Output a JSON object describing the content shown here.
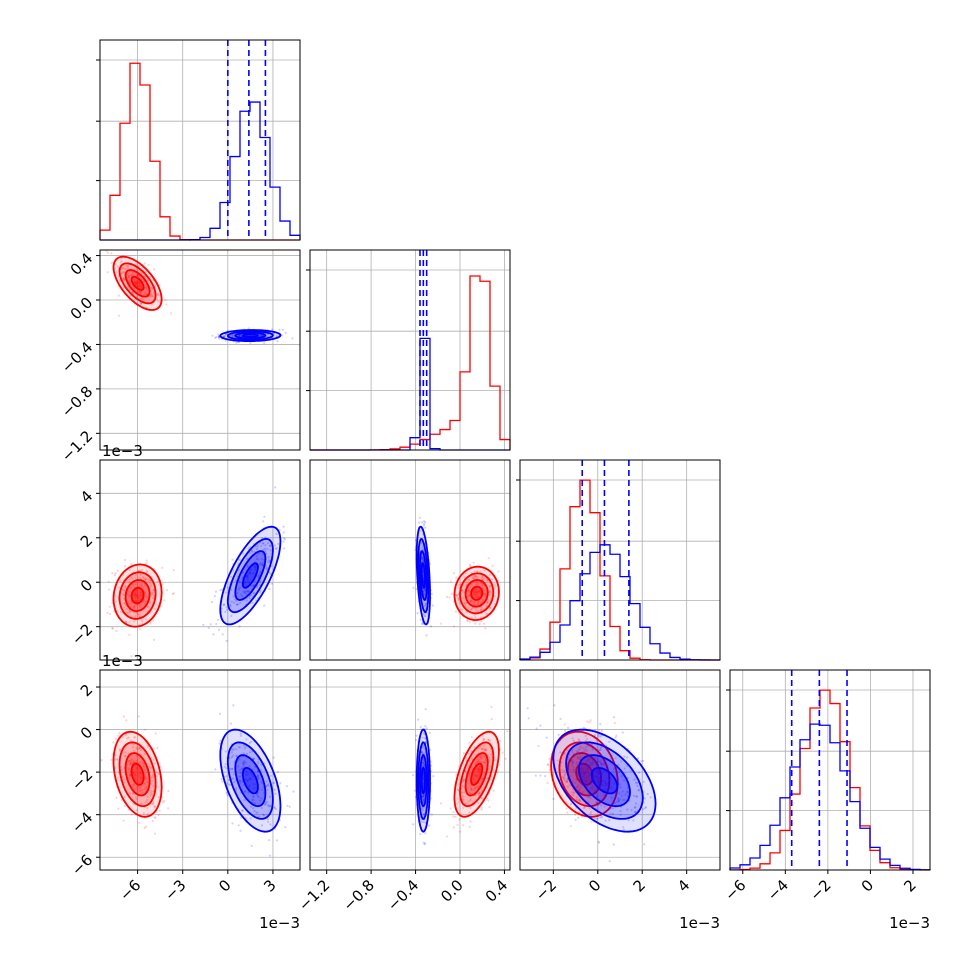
{
  "chart_data": {
    "type": "corner",
    "colors": {
      "series_a": "#ff0000",
      "series_b": "#0000ff"
    },
    "grid": true,
    "parameters": [
      {
        "index": 0,
        "range": [
          -8.5,
          4.8
        ],
        "ticks": [
          -6,
          -3,
          0,
          3
        ],
        "tick_labels": [
          "−6",
          "−3",
          "0",
          "3"
        ],
        "offset_label": "1e−3"
      },
      {
        "index": 1,
        "range": [
          -1.35,
          0.45
        ],
        "ticks": [
          -1.2,
          -0.8,
          -0.4,
          0.0,
          0.4
        ],
        "tick_labels": [
          "−1.2",
          "−0.8",
          "−0.4",
          "0.0",
          "0.4"
        ],
        "offset_label": ""
      },
      {
        "index": 2,
        "range": [
          -3.5,
          5.5
        ],
        "ticks": [
          -2,
          0,
          2,
          4
        ],
        "tick_labels": [
          "−2",
          "0",
          "2",
          "4"
        ],
        "offset_label": "1e−3"
      },
      {
        "index": 3,
        "range": [
          -6.6,
          2.8
        ],
        "ticks": [
          -6,
          -4,
          -2,
          0,
          2
        ],
        "tick_labels": [
          "−6",
          "−4",
          "−2",
          "0",
          "2"
        ],
        "offset_label": "1e−3"
      }
    ],
    "histograms": [
      {
        "param": 0,
        "quantiles_b": [
          0.0,
          1.4,
          2.5
        ],
        "series_a_peaks": [
          {
            "mu": -6.0,
            "sigma": 0.9,
            "weight": 1.0
          }
        ],
        "series_b_peaks": [
          {
            "mu": 1.6,
            "sigma": 1.1,
            "weight": 0.78
          }
        ]
      },
      {
        "param": 1,
        "quantiles_b": [
          -0.36,
          -0.33,
          -0.3
        ],
        "series_a_peaks": [
          {
            "mu": 0.18,
            "sigma": 0.09,
            "weight": 1.0
          },
          {
            "mu": -0.05,
            "sigma": 0.22,
            "weight": 0.12
          }
        ],
        "series_b_peaks": [
          {
            "mu": -0.33,
            "sigma": 0.035,
            "weight": 0.68
          }
        ]
      },
      {
        "param": 2,
        "quantiles_b": [
          -0.7,
          0.3,
          1.4
        ],
        "series_a_peaks": [
          {
            "mu": -0.6,
            "sigma": 0.75,
            "weight": 1.0
          }
        ],
        "series_b_peaks": [
          {
            "mu": 0.3,
            "sigma": 1.15,
            "weight": 0.64
          }
        ]
      },
      {
        "param": 3,
        "quantiles_b": [
          -3.7,
          -2.4,
          -1.1
        ],
        "series_a_peaks": [
          {
            "mu": -2.1,
            "sigma": 1.1,
            "weight": 1.0
          }
        ],
        "series_b_peaks": [
          {
            "mu": -2.4,
            "sigma": 1.35,
            "weight": 0.82
          }
        ]
      }
    ],
    "joint": [
      {
        "row": 1,
        "col": 0,
        "series_a": {
          "mean": [
            -6.0,
            0.15
          ],
          "std": [
            0.8,
            0.12
          ],
          "corr": -0.6
        },
        "series_b": {
          "mean": [
            1.5,
            -0.32
          ],
          "std": [
            1.0,
            0.025
          ],
          "corr": 0.05
        }
      },
      {
        "row": 2,
        "col": 0,
        "series_a": {
          "mean": [
            -6.0,
            -0.6
          ],
          "std": [
            0.8,
            0.7
          ],
          "corr": 0.1
        },
        "series_b": {
          "mean": [
            1.5,
            0.3
          ],
          "std": [
            1.0,
            1.1
          ],
          "corr": 0.7
        }
      },
      {
        "row": 2,
        "col": 1,
        "series_a": {
          "mean": [
            0.15,
            -0.5
          ],
          "std": [
            0.1,
            0.6
          ],
          "corr": 0.05
        },
        "series_b": {
          "mean": [
            -0.33,
            0.3
          ],
          "std": [
            0.03,
            1.1
          ],
          "corr": -0.4
        }
      },
      {
        "row": 3,
        "col": 0,
        "series_a": {
          "mean": [
            -6.0,
            -2.1
          ],
          "std": [
            0.8,
            1.0
          ],
          "corr": -0.3
        },
        "series_b": {
          "mean": [
            1.5,
            -2.4
          ],
          "std": [
            1.0,
            1.2
          ],
          "corr": -0.5
        }
      },
      {
        "row": 3,
        "col": 1,
        "series_a": {
          "mean": [
            0.15,
            -2.1
          ],
          "std": [
            0.1,
            1.0
          ],
          "corr": 0.55
        },
        "series_b": {
          "mean": [
            -0.33,
            -2.4
          ],
          "std": [
            0.03,
            1.2
          ],
          "corr": 0.0
        }
      },
      {
        "row": 3,
        "col": 2,
        "series_a": {
          "mean": [
            -0.6,
            -2.1
          ],
          "std": [
            0.75,
            1.0
          ],
          "corr": -0.2
        },
        "series_b": {
          "mean": [
            0.3,
            -2.4
          ],
          "std": [
            1.15,
            1.2
          ],
          "corr": -0.45
        }
      }
    ]
  }
}
